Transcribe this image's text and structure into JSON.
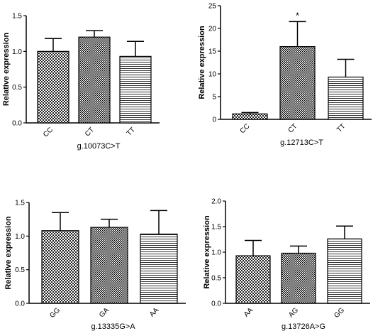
{
  "chart_data": [
    {
      "type": "bar",
      "categories": [
        "CC",
        "CT",
        "TT"
      ],
      "values": [
        1.0,
        1.2,
        0.93
      ],
      "errors": [
        0.18,
        0.09,
        0.21
      ],
      "patterns": [
        "check",
        "check-dense",
        "hlines"
      ],
      "annotations": [
        "",
        "",
        ""
      ],
      "xlabel": "g.10073C>T",
      "ylabel": "Relative expression",
      "ylim": [
        0,
        1.5
      ],
      "yticks": [
        "0.0",
        "0.5",
        "1.0",
        "1.5"
      ]
    },
    {
      "type": "bar",
      "categories": [
        "CC",
        "CT",
        "TT"
      ],
      "values": [
        1.2,
        16.0,
        9.3
      ],
      "errors": [
        0.3,
        5.5,
        3.9
      ],
      "patterns": [
        "check",
        "check-dense",
        "hlines"
      ],
      "annotations": [
        "",
        "*",
        ""
      ],
      "xlabel": "g.12713C>T",
      "ylabel": "Relative expression",
      "ylim": [
        0,
        25
      ],
      "yticks": [
        "0",
        "5",
        "10",
        "15",
        "20",
        "25"
      ]
    },
    {
      "type": "bar",
      "categories": [
        "GG",
        "GA",
        "AA"
      ],
      "values": [
        1.08,
        1.13,
        1.03
      ],
      "errors": [
        0.27,
        0.12,
        0.35
      ],
      "patterns": [
        "check",
        "check-dense",
        "hlines"
      ],
      "annotations": [
        "",
        "",
        ""
      ],
      "xlabel": "g.13335G>A",
      "ylabel": "Relative expression",
      "ylim": [
        0,
        1.5
      ],
      "yticks": [
        "0.0",
        "0.5",
        "1.0",
        "1.5"
      ]
    },
    {
      "type": "bar",
      "categories": [
        "AA",
        "AG",
        "GG"
      ],
      "values": [
        0.93,
        0.98,
        1.26
      ],
      "errors": [
        0.3,
        0.14,
        0.25
      ],
      "patterns": [
        "check",
        "check-dense",
        "hlines"
      ],
      "annotations": [
        "",
        "",
        ""
      ],
      "xlabel": "g.13726A>G",
      "ylabel": "Relative expression",
      "ylim": [
        0,
        2.0
      ],
      "yticks": [
        "0.0",
        "0.5",
        "1.0",
        "1.5",
        "2.0"
      ]
    }
  ]
}
